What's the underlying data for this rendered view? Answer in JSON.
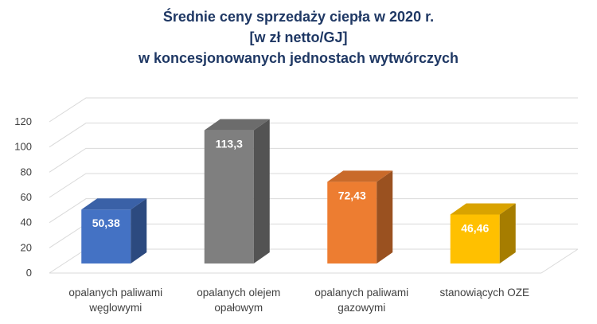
{
  "chart_data": {
    "type": "bar",
    "title_lines": [
      "Średnie ceny sprzedaży ciepła w 2020  r.",
      "[w zł netto/GJ]",
      "w koncesjonowanych jednostach wytwórczych"
    ],
    "categories": [
      [
        "opalanych paliwami",
        "węglowymi"
      ],
      [
        "opalanych olejem",
        "opałowym"
      ],
      [
        "opalanych paliwami",
        "gazowymi"
      ],
      [
        "stanowiących OZE"
      ]
    ],
    "values": [
      50.38,
      113.3,
      72.43,
      46.46
    ],
    "data_labels": [
      "50,38",
      "113,3",
      "72,43",
      "46,46"
    ],
    "colors": [
      "#4472c4",
      "#7f7f7f",
      "#ed7d31",
      "#ffc000"
    ],
    "y_ticks": [
      "0",
      "20",
      "40",
      "60",
      "80",
      "100",
      "120"
    ],
    "ylim": [
      0,
      120
    ],
    "grid": true,
    "legend": "none",
    "xlabel": "",
    "ylabel": ""
  }
}
